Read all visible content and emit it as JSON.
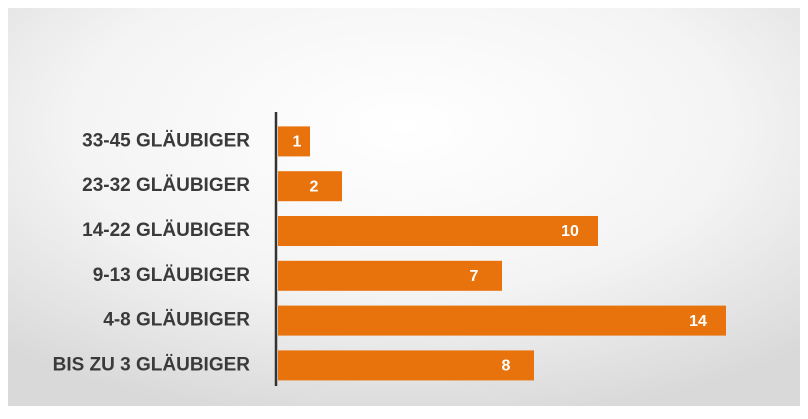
{
  "chart_data": {
    "type": "bar",
    "orientation": "horizontal",
    "categories": [
      "33-45 GLÄUBIGER",
      "23-32 GLÄUBIGER",
      "14-22 GLÄUBIGER",
      "9-13 GLÄUBIGER",
      "4-8 GLÄUBIGER",
      "BIS ZU 3 GLÄUBIGER"
    ],
    "values": [
      1,
      2,
      10,
      7,
      14,
      8
    ],
    "color": "#e8720c"
  }
}
